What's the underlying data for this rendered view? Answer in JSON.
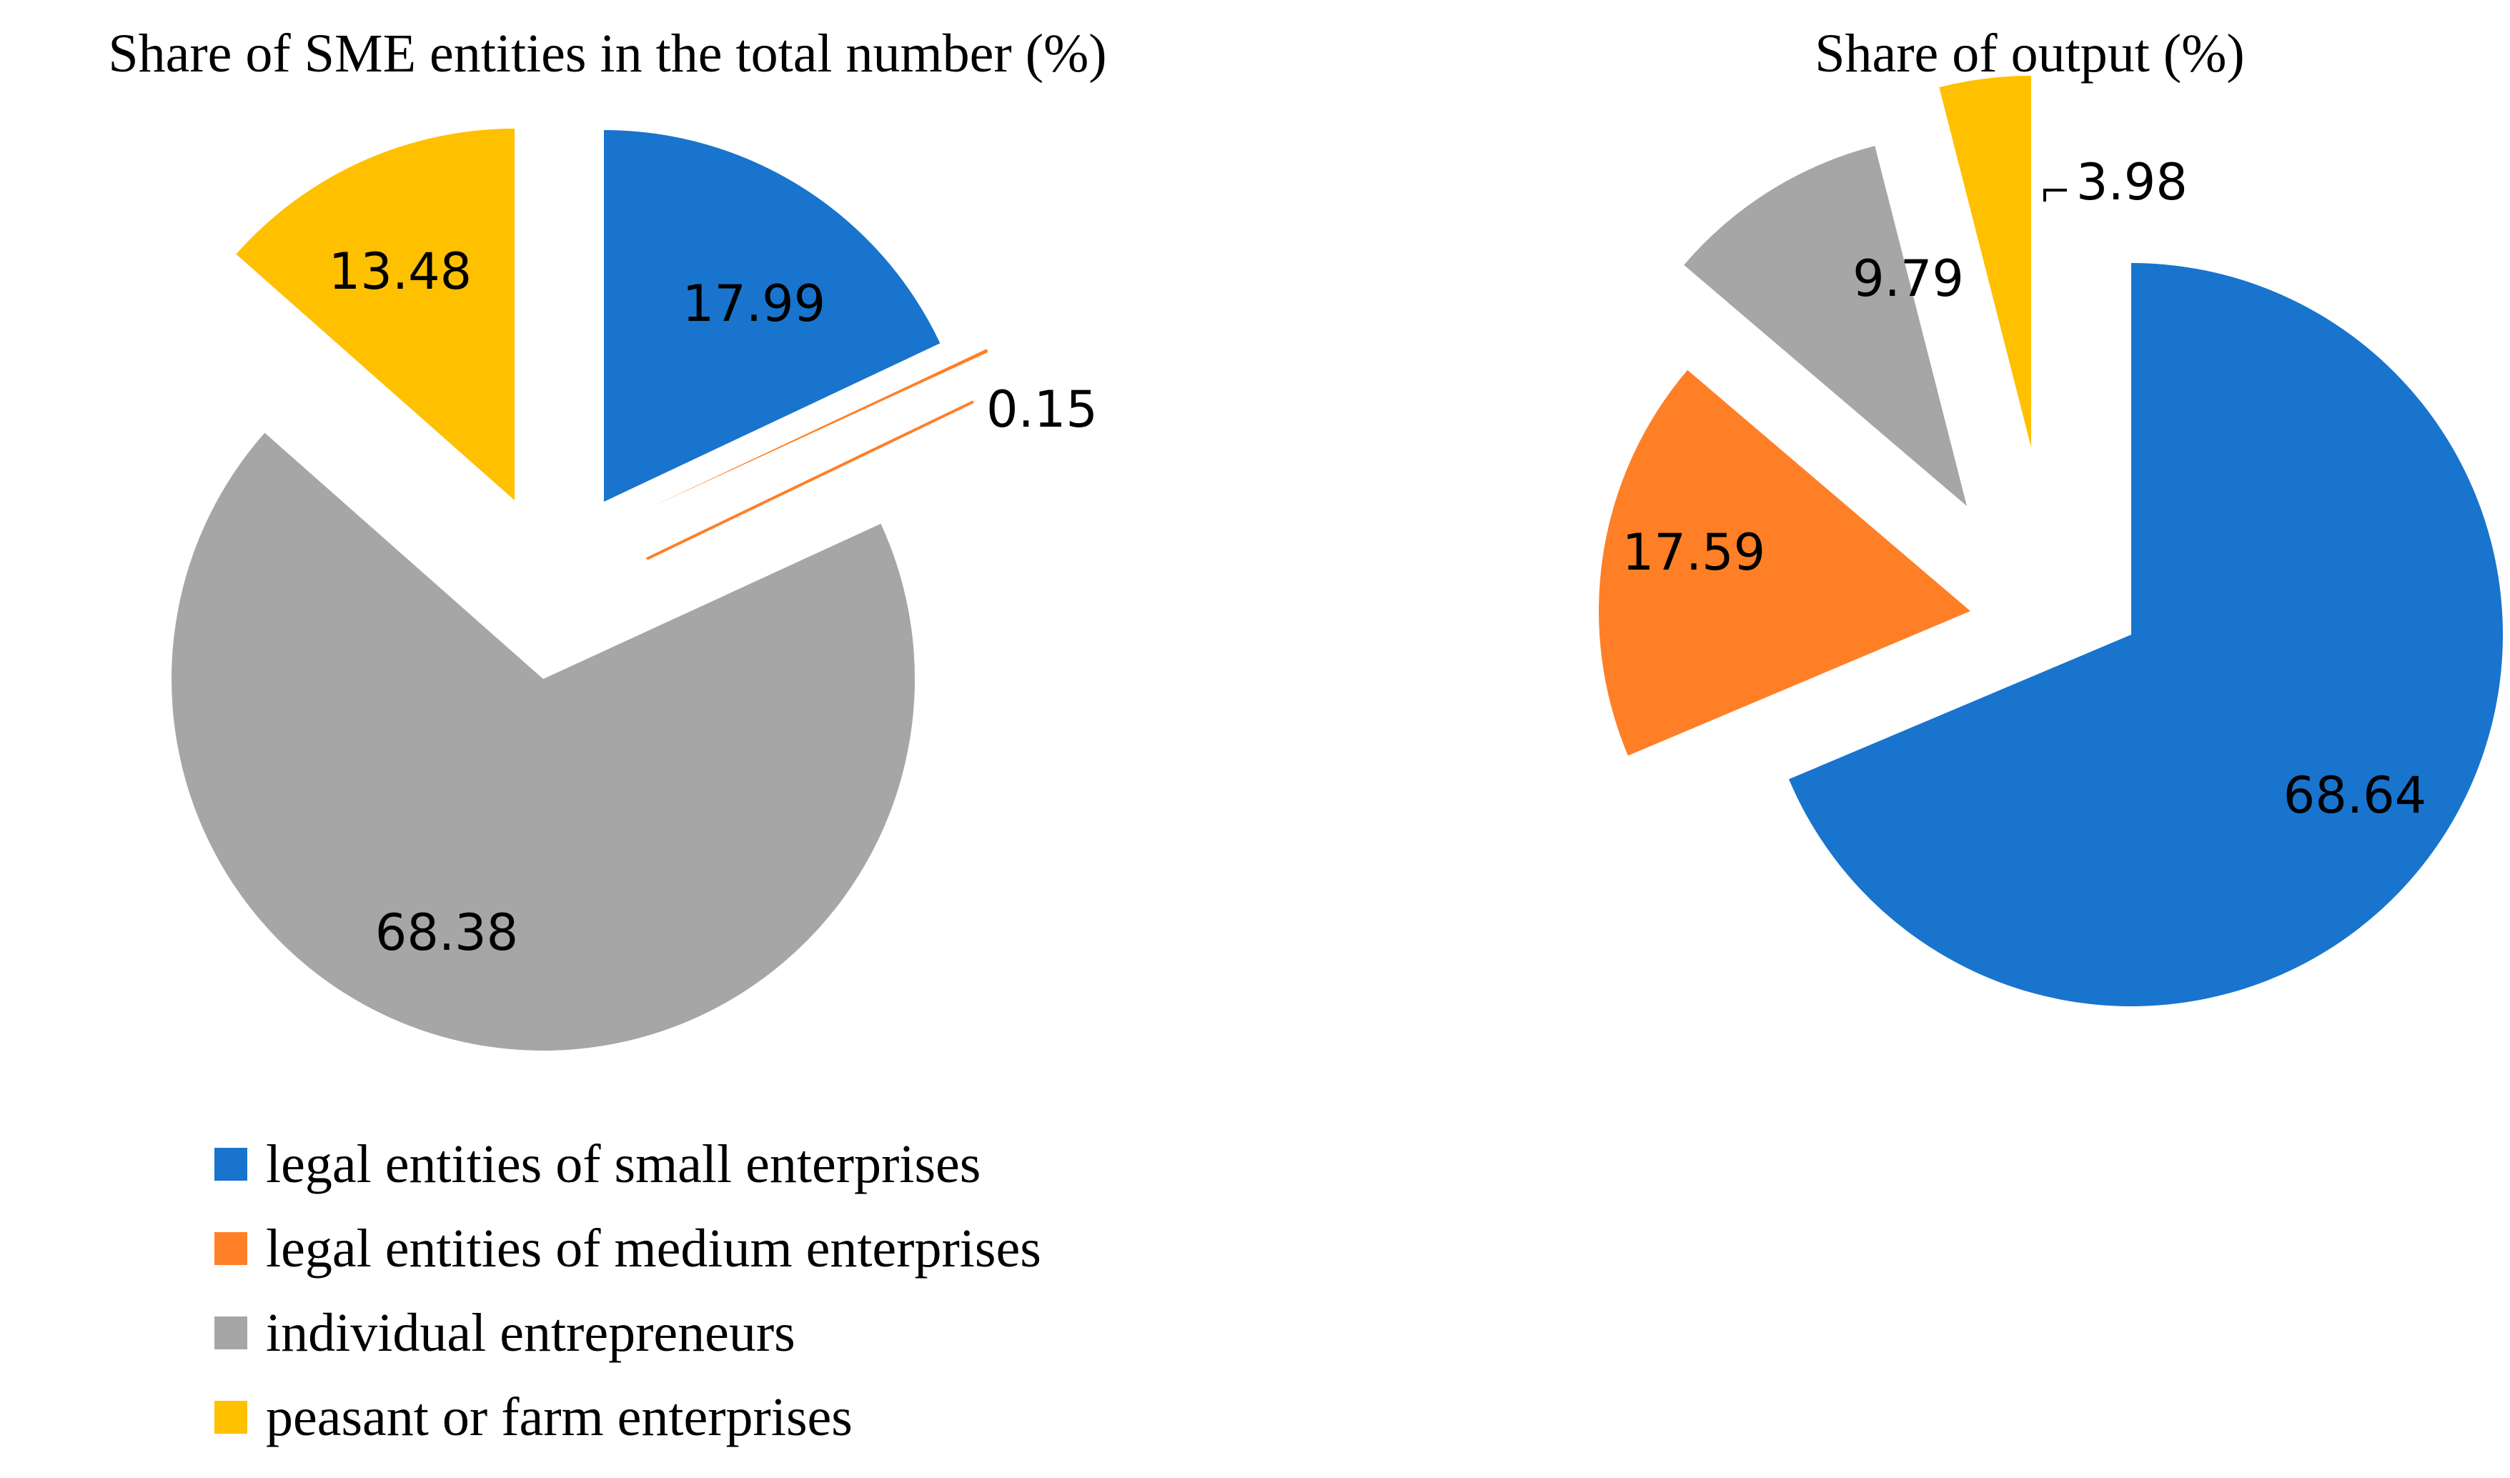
{
  "chart_data": [
    {
      "type": "pie",
      "title": "Share of SME entities in the total number (%)",
      "categories": [
        "legal entities of small enterprises",
        "legal entities of medium enterprises",
        "individual entrepreneurs",
        "peasant or farm enterprises"
      ],
      "values": [
        17.99,
        0.15,
        68.38,
        13.48
      ],
      "labels": [
        "17.99",
        "0.15",
        "68.38",
        "13.48"
      ],
      "exploded": true
    },
    {
      "type": "pie",
      "title": "Share of output (%)",
      "categories": [
        "legal entities of small enterprises",
        "legal entities of medium enterprises",
        "individual entrepreneurs",
        "peasant or farm enterprises"
      ],
      "values": [
        68.64,
        17.59,
        9.79,
        3.98
      ],
      "labels": [
        "68.64",
        "17.59",
        "9.79",
        "3.98"
      ],
      "exploded": true
    }
  ],
  "legend": {
    "items": [
      {
        "label": "legal entities of small enterprises",
        "color": "#1874CD"
      },
      {
        "label": "legal entities of medium enterprises",
        "color": "#FF7F27"
      },
      {
        "label": "individual entrepreneurs",
        "color": "#A6A6A6"
      },
      {
        "label": "peasant or farm enterprises",
        "color": "#FFC000"
      }
    ]
  }
}
